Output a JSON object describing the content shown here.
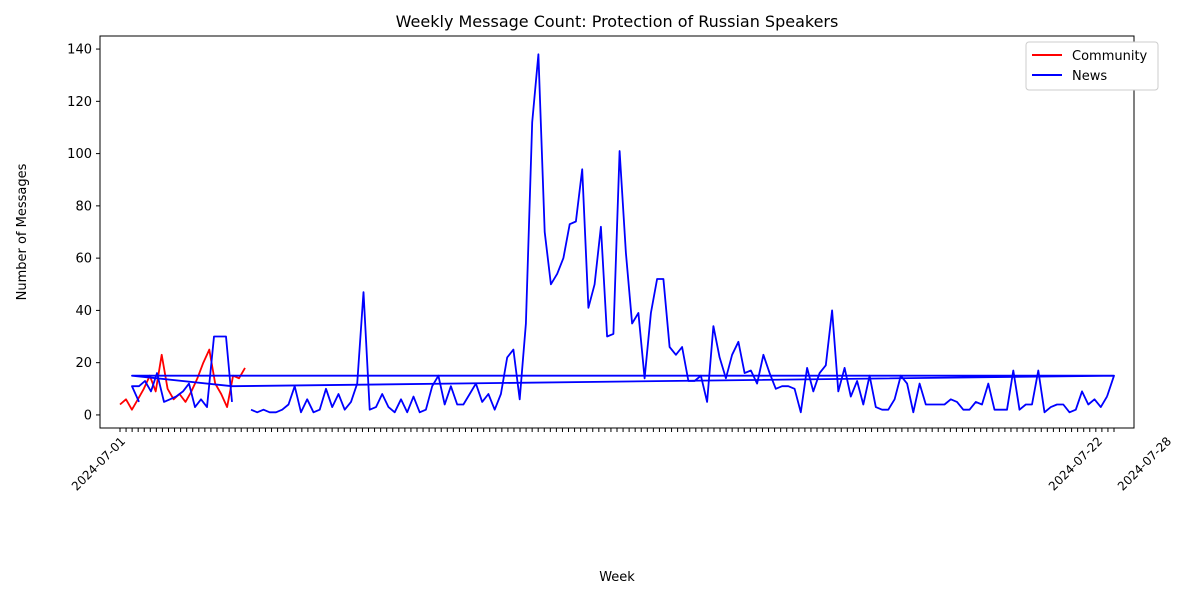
{
  "chart_data": {
    "type": "line",
    "title": "Weekly Message Count: Protection of Russian Speakers",
    "xlabel": "Week",
    "ylabel": "Number of Messages",
    "x_axis": "categorical weekly dates (tick labels overlap heavily and are largely illegible)",
    "x_tick_labels_legible": [
      "2024-07-01",
      "2024-07-22",
      "2024-07-28"
    ],
    "ylim": [
      -5,
      145
    ],
    "y_ticks": [
      0,
      20,
      40,
      60,
      80,
      100,
      120,
      140
    ],
    "legend": {
      "position": "upper right",
      "entries": [
        "Community",
        "News"
      ]
    },
    "grid": false,
    "series": [
      {
        "name": "Community",
        "color": "#ff0000",
        "values": [
          4,
          6,
          2,
          6,
          10,
          15,
          9,
          23,
          10,
          6,
          8,
          5,
          9,
          14,
          20,
          25,
          12,
          8,
          3,
          15,
          14,
          18
        ]
      },
      {
        "name": "News",
        "color": "#0000ff",
        "segments": [
          {
            "note": "first block of weeks",
            "values": [
              5,
              11,
              11,
              13,
              9,
              16,
              5,
              6,
              7,
              9,
              12,
              3,
              6,
              3,
              30,
              30,
              30,
              5
            ]
          },
          {
            "note": "main block of weeks",
            "values": [
              2,
              1,
              2,
              1,
              1,
              2,
              4,
              11,
              1,
              6,
              1,
              2,
              10,
              3,
              8,
              2,
              5,
              12,
              47,
              2,
              3,
              8,
              3,
              1,
              6,
              1,
              7,
              1,
              2,
              11,
              15,
              4,
              11,
              4,
              4,
              8,
              12,
              5,
              8,
              2,
              8,
              22,
              25,
              6,
              35,
              112,
              138,
              70,
              50,
              54,
              60,
              73,
              74,
              94,
              41,
              50,
              72,
              30,
              31,
              101,
              62,
              35,
              39,
              14,
              39,
              52,
              52,
              26,
              23,
              26,
              13,
              13,
              15,
              5,
              34,
              22,
              14,
              23,
              28,
              16,
              17,
              12,
              23,
              16,
              10,
              11,
              11,
              10,
              1,
              18,
              9,
              16,
              19,
              40,
              9,
              18,
              7,
              13,
              4,
              15,
              3,
              2,
              2,
              6,
              15,
              12,
              1,
              12,
              4,
              4,
              4,
              4,
              6,
              5,
              2,
              2,
              5,
              4,
              12,
              2,
              2,
              2,
              17,
              2,
              4,
              4,
              17,
              1,
              3,
              4,
              4,
              1,
              2,
              9,
              4,
              6,
              3,
              7
            ]
          },
          {
            "note": "return lines to the last weeks",
            "values": [
              7,
              15,
              15,
              11,
              15
            ]
          }
        ]
      }
    ]
  }
}
